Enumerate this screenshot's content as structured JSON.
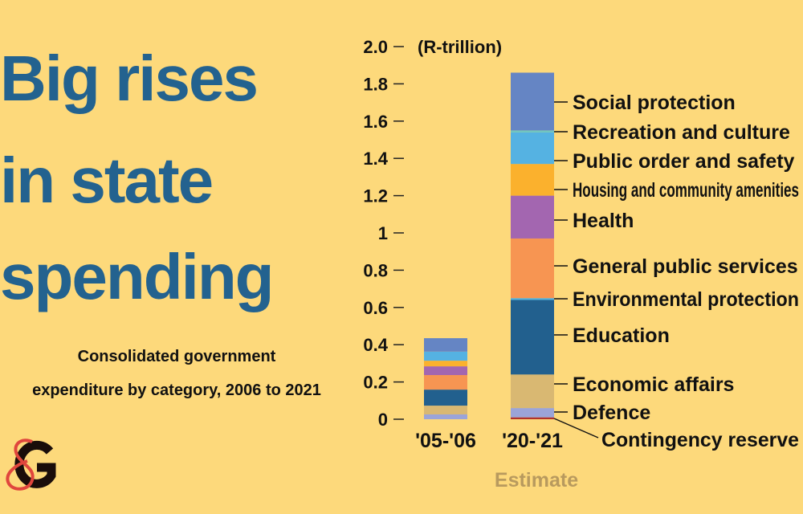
{
  "headline": [
    "Big rises",
    "in state",
    "spending"
  ],
  "subtitle": [
    "Consolidated government",
    "expenditure by category, 2006 to 2021"
  ],
  "logo_text": "G&G",
  "chart_data": {
    "type": "bar",
    "stacked": true,
    "unit_label": "(R-trillion)",
    "ylim": [
      0,
      2.0
    ],
    "yticks": [
      "0",
      "0.2",
      "0.4",
      "0.6",
      "0.8",
      "1",
      "1.2",
      "1.4",
      "1.6",
      "1.8",
      "2.0"
    ],
    "categories": [
      "'05-'06",
      "'20-'21"
    ],
    "category_notes": [
      "",
      "Estimate"
    ],
    "series": [
      {
        "name": "Contingency reserve",
        "color": "#b2332a",
        "values": [
          0,
          0.01
        ]
      },
      {
        "name": "Defence",
        "color": "#9ba4d8",
        "values": [
          0.026,
          0.05
        ]
      },
      {
        "name": "Economic affairs",
        "color": "#d9b872",
        "values": [
          0.047,
          0.18
        ]
      },
      {
        "name": "Education",
        "color": "#22608e",
        "values": [
          0.086,
          0.4
        ]
      },
      {
        "name": "Environmental protection",
        "color": "#4fb0e0",
        "values": [
          0,
          0.01
        ]
      },
      {
        "name": "General public services",
        "color": "#f79552",
        "values": [
          0.078,
          0.32
        ]
      },
      {
        "name": "Health",
        "color": "#a366b0",
        "values": [
          0.047,
          0.23
        ]
      },
      {
        "name": "Housing and community amenities",
        "color": "#fbb12d",
        "values": [
          0.03,
          0.17
        ]
      },
      {
        "name": "Public order and safety",
        "color": "#55b2e2",
        "values": [
          0.049,
          0.17
        ]
      },
      {
        "name": "Recreation and culture",
        "color": "#6ec6c0",
        "values": [
          0,
          0.01
        ]
      },
      {
        "name": "Social protection",
        "color": "#6585c4",
        "values": [
          0.072,
          0.31
        ]
      }
    ],
    "grid": false,
    "legend": "labels-right"
  },
  "colors": {
    "background": "#fdd97b",
    "headline": "#23628f",
    "estimate": "#b89a5e"
  }
}
